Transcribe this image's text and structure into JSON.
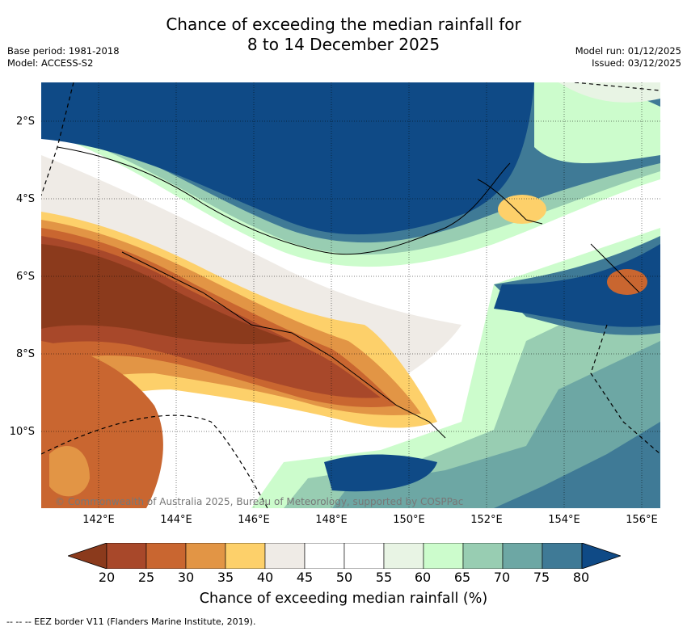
{
  "title_line1": "Chance of exceeding the median rainfall for",
  "title_line2": "8 to 14 December 2025",
  "meta_left": [
    "Base period: 1981-2018",
    "Model: ACCESS-S2"
  ],
  "meta_right": [
    "Model run: 01/12/2025",
    "Issued: 03/12/2025"
  ],
  "lat_labels": [
    "2°S",
    "4°S",
    "6°S",
    "8°S",
    "10°S"
  ],
  "lon_labels": [
    "142°E",
    "144°E",
    "146°E",
    "148°E",
    "150°E",
    "152°E",
    "154°E",
    "156°E"
  ],
  "copyright": "© Commonwealth of Australia 2025, Bureau of Meteorology, supported by COSPPac",
  "colorbar": {
    "ticks": [
      "20",
      "25",
      "30",
      "35",
      "40",
      "45",
      "50",
      "55",
      "60",
      "65",
      "70",
      "75",
      "80"
    ],
    "colors": [
      "#8b3a1c",
      "#a8482a",
      "#c96630",
      "#e29545",
      "#fdd06a",
      "#efebe6",
      "#ffffff",
      "#ffffff",
      "#e8f4e4",
      "#ccfccc",
      "#98cdb2",
      "#6da7a4",
      "#3f7a96",
      "#0f4a86"
    ],
    "label": "Chance of exceeding median rainfall (%)"
  },
  "footnote": "-- -- -- EEZ border V11 (Flanders Marine Institute, 2019)."
}
